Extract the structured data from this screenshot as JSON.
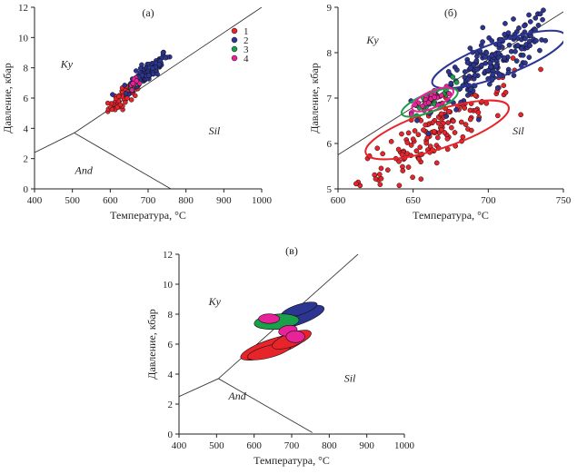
{
  "colors": {
    "1": "#e8242b",
    "2": "#2c3592",
    "3": "#1aa04a",
    "4": "#e8239a",
    "axis": "#222222",
    "stroke": "#222222"
  },
  "chart_data": [
    {
      "id": "a",
      "type": "scatter",
      "title": "(а)",
      "xlabel": "Температура, °C",
      "ylabel": "Давление, кбар",
      "xlim": [
        400,
        1000
      ],
      "ylim": [
        0,
        12
      ],
      "xticks": [
        "400",
        "500",
        "600",
        "700",
        "800",
        "900",
        "1000"
      ],
      "yticks": [
        "0",
        "2",
        "4",
        "6",
        "8",
        "10",
        "12"
      ],
      "fields": [
        "Ky",
        "Sil",
        "And"
      ],
      "field_pos": [
        [
          485,
          8
        ],
        [
          875,
          3.6
        ],
        [
          530,
          1
        ]
      ],
      "legend": [
        "1",
        "2",
        "3",
        "4"
      ],
      "phase_boundaries": [
        [
          [
            400,
            2.4
          ],
          [
            505,
            3.7
          ]
        ],
        [
          [
            505,
            3.7
          ],
          [
            1000,
            12
          ]
        ],
        [
          [
            505,
            3.7
          ],
          [
            760,
            0
          ]
        ]
      ],
      "series": [
        {
          "name": "1",
          "center": [
            640,
            6.2
          ],
          "spread": [
            25,
            0.35
          ],
          "n": 70
        },
        {
          "name": "2",
          "center": [
            700,
            7.75
          ],
          "spread": [
            30,
            0.35
          ],
          "n": 110
        },
        {
          "name": "3",
          "center": [
            660,
            6.85
          ],
          "spread": [
            5,
            0.1
          ],
          "n": 8
        },
        {
          "name": "4",
          "center": [
            663,
            6.95
          ],
          "spread": [
            6,
            0.15
          ],
          "n": 14
        }
      ]
    },
    {
      "id": "b",
      "type": "scatter",
      "title": "(б)",
      "xlabel": "Температура, °C",
      "ylabel": "Давление, кбар",
      "xlim": [
        600,
        750
      ],
      "ylim": [
        5,
        9
      ],
      "xticks": [
        "600",
        "650",
        "700",
        "750"
      ],
      "yticks": [
        "5",
        "6",
        "7",
        "8",
        "9"
      ],
      "fields": [
        "Ky",
        "Sil"
      ],
      "field_pos": [
        [
          623,
          8.2
        ],
        [
          720,
          6.2
        ]
      ],
      "phase_boundaries": [
        [
          [
            600,
            5.75
          ],
          [
            750,
            8.9
          ]
        ]
      ],
      "series": [
        {
          "name": "1",
          "center": [
            665,
            6.25
          ],
          "spread": [
            28,
            0.35
          ],
          "n": 160
        },
        {
          "name": "2",
          "center": [
            705,
            7.85
          ],
          "spread": [
            22,
            0.3
          ],
          "n": 200
        },
        {
          "name": "3",
          "center": [
            660,
            6.9
          ],
          "spread": [
            9,
            0.12
          ],
          "n": 26
        },
        {
          "name": "4",
          "center": [
            662,
            6.95
          ],
          "spread": [
            7,
            0.12
          ],
          "n": 24
        }
      ],
      "ellipses": [
        {
          "series": "1",
          "cx": 666,
          "cy": 6.3,
          "rx": 50,
          "ry": 0.42,
          "angle": -18
        },
        {
          "series": "2",
          "cx": 707,
          "cy": 7.85,
          "rx": 47,
          "ry": 0.37,
          "angle": -20
        },
        {
          "series": "3",
          "cx": 661,
          "cy": 6.9,
          "rx": 20,
          "ry": 0.2,
          "angle": -22
        },
        {
          "series": "4",
          "cx": 663,
          "cy": 6.97,
          "rx": 15,
          "ry": 0.18,
          "angle": -25
        }
      ]
    },
    {
      "id": "c",
      "type": "scatter",
      "title": "(в)",
      "xlabel": "Температура, °C",
      "ylabel": "Давление, кбар",
      "xlim": [
        400,
        1000
      ],
      "ylim": [
        0,
        12
      ],
      "xticks": [
        "400",
        "500",
        "600",
        "700",
        "800",
        "900",
        "1000"
      ],
      "yticks": [
        "0",
        "2",
        "4",
        "6",
        "8",
        "10",
        "12"
      ],
      "fields": [
        "Ky",
        "Sil",
        "And"
      ],
      "field_pos": [
        [
          495,
          8.6
        ],
        [
          855,
          3.5
        ],
        [
          555,
          2.3
        ]
      ],
      "phase_boundaries": [
        [
          [
            400,
            2.5
          ],
          [
            505,
            3.7
          ]
        ],
        [
          [
            505,
            3.7
          ],
          [
            890,
            12.3
          ]
        ],
        [
          [
            505,
            3.7
          ],
          [
            755,
            0.1
          ]
        ]
      ],
      "ellipses": [
        {
          "series": "1",
          "cx": 650,
          "cy": 5.8,
          "rx": 90,
          "ry": 0.55,
          "angle": -18
        },
        {
          "series": "1",
          "cx": 640,
          "cy": 5.5,
          "rx": 60,
          "ry": 0.4,
          "angle": -15
        },
        {
          "series": "1",
          "cx": 700,
          "cy": 6.3,
          "rx": 55,
          "ry": 0.45,
          "angle": -20
        },
        {
          "series": "2",
          "cx": 710,
          "cy": 7.8,
          "rx": 80,
          "ry": 0.55,
          "angle": -18
        },
        {
          "series": "2",
          "cx": 720,
          "cy": 8.3,
          "rx": 50,
          "ry": 0.35,
          "angle": -18
        },
        {
          "series": "3",
          "cx": 660,
          "cy": 7.5,
          "rx": 60,
          "ry": 0.5,
          "angle": -5
        },
        {
          "series": "4",
          "cx": 640,
          "cy": 7.7,
          "rx": 28,
          "ry": 0.32,
          "angle": 0
        },
        {
          "series": "4",
          "cx": 690,
          "cy": 6.9,
          "rx": 25,
          "ry": 0.35,
          "angle": -10
        },
        {
          "series": "4",
          "cx": 710,
          "cy": 6.5,
          "rx": 25,
          "ry": 0.4,
          "angle": 0
        }
      ]
    }
  ]
}
